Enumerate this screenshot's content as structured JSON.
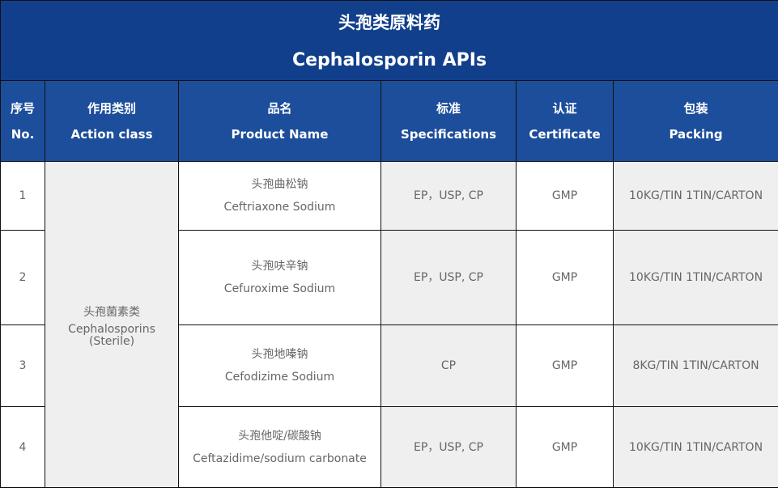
{
  "title": {
    "zh": "头孢类原料药",
    "en": "Cephalosporin APIs"
  },
  "headers": [
    {
      "zh": "序号",
      "en": "No."
    },
    {
      "zh": "作用类别",
      "en": "Action class"
    },
    {
      "zh": "品名",
      "en": "Product Name"
    },
    {
      "zh": "标准",
      "en": "Specifications"
    },
    {
      "zh": "认证",
      "en": "Certificate"
    },
    {
      "zh": "包装",
      "en": "Packing"
    }
  ],
  "action_class": {
    "zh": "头孢菌素类",
    "en": "Cephalosporins (Sterile)"
  },
  "rows": [
    {
      "no": "1",
      "zh": "头孢曲松钠",
      "en": "Ceftriaxone Sodium",
      "spec": "EP，USP, CP",
      "cert": "GMP",
      "pack": "10KG/TIN 1TIN/CARTON"
    },
    {
      "no": "2",
      "zh": "头孢呋辛钠",
      "en": "Cefuroxime Sodium",
      "spec": "EP，USP, CP",
      "cert": "GMP",
      "pack": "10KG/TIN 1TIN/CARTON"
    },
    {
      "no": "3",
      "zh": "头孢地嗪钠",
      "en": "Cefodizime Sodium",
      "spec": "CP",
      "cert": "GMP",
      "pack": "8KG/TIN 1TIN/CARTON"
    },
    {
      "no": "4",
      "zh": "头孢他啶/碳酸钠",
      "en": "Ceftazidime/sodium carbonate",
      "spec": "EP，USP, CP",
      "cert": "GMP",
      "pack": "10KG/TIN 1TIN/CARTON"
    }
  ]
}
